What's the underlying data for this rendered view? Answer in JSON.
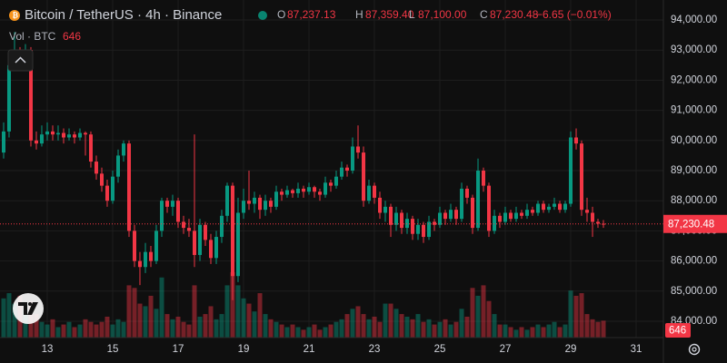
{
  "chart_data": {
    "type": "candlestick",
    "title": "Bitcoin / TetherUS · 4h · Binance",
    "ohlc_keys": [
      "O",
      "H",
      "L",
      "C"
    ],
    "last_labels": [
      "87,237.13",
      "87,359.40",
      "87,100.00",
      "87,230.48"
    ],
    "change": "−6.65 (−0.01%)",
    "volume_title": "Vol · BTC",
    "up_color": "#089981",
    "down_color": "#f23645",
    "x": [
      11.667,
      11.833,
      12,
      12.167,
      12.333,
      12.5,
      12.667,
      12.833,
      13,
      13.167,
      13.333,
      13.5,
      13.667,
      13.833,
      14,
      14.167,
      14.333,
      14.5,
      14.667,
      14.833,
      15,
      15.167,
      15.333,
      15.5,
      15.667,
      15.833,
      16,
      16.167,
      16.333,
      16.5,
      16.667,
      16.833,
      17,
      17.167,
      17.333,
      17.5,
      17.667,
      17.833,
      18,
      18.167,
      18.333,
      18.5,
      18.667,
      18.833,
      19,
      19.167,
      19.333,
      19.5,
      19.667,
      19.833,
      20,
      20.167,
      20.333,
      20.5,
      20.667,
      20.833,
      21,
      21.167,
      21.333,
      21.5,
      21.667,
      21.833,
      22,
      22.167,
      22.333,
      22.5,
      22.667,
      22.833,
      23,
      23.167,
      23.333,
      23.5,
      23.667,
      23.833,
      24,
      24.167,
      24.333,
      24.5,
      24.667,
      24.833,
      25,
      25.167,
      25.333,
      25.5,
      25.667,
      25.833,
      26,
      26.167,
      26.333,
      26.5,
      26.667,
      26.833,
      27,
      27.167,
      27.333,
      27.5,
      27.667,
      27.833,
      28,
      28.167,
      28.333,
      28.5,
      28.667,
      28.833,
      29,
      29.167,
      29.333,
      29.5,
      29.667,
      29.833,
      30
    ],
    "ohlc": [
      [
        89600,
        90600,
        89400,
        90300
      ],
      [
        90300,
        92700,
        90100,
        92500
      ],
      [
        92500,
        93600,
        92300,
        92900
      ],
      [
        92900,
        93100,
        92400,
        92700
      ],
      [
        92700,
        93200,
        92500,
        93000
      ],
      [
        93000,
        93100,
        89800,
        90000
      ],
      [
        90000,
        90300,
        89700,
        89900
      ],
      [
        89900,
        90500,
        89800,
        90200
      ],
      [
        90200,
        90600,
        90000,
        90300
      ],
      [
        90300,
        90500,
        90000,
        90200
      ],
      [
        90200,
        90500,
        90000,
        90250
      ],
      [
        90250,
        90400,
        89900,
        90100
      ],
      [
        90100,
        90400,
        90000,
        90200
      ],
      [
        90200,
        90300,
        89900,
        90100
      ],
      [
        90100,
        90400,
        90000,
        90250
      ],
      [
        90250,
        90300,
        89500,
        90200
      ],
      [
        90200,
        90300,
        89100,
        89300
      ],
      [
        89300,
        89500,
        88700,
        88900
      ],
      [
        88900,
        89100,
        88300,
        88500
      ],
      [
        88500,
        88700,
        87800,
        88000
      ],
      [
        88000,
        89000,
        87900,
        88800
      ],
      [
        88800,
        89700,
        88600,
        89500
      ],
      [
        89500,
        90000,
        89300,
        89900
      ],
      [
        89900,
        90000,
        86800,
        87000
      ],
      [
        87000,
        87200,
        85800,
        86000
      ],
      [
        86000,
        86300,
        85200,
        85800
      ],
      [
        85800,
        86600,
        85600,
        86300
      ],
      [
        86300,
        86500,
        85800,
        86000
      ],
      [
        86000,
        87200,
        85900,
        87000
      ],
      [
        87000,
        88100,
        86800,
        88000
      ],
      [
        88000,
        88100,
        87600,
        87800
      ],
      [
        87800,
        88200,
        87500,
        88000
      ],
      [
        88000,
        88100,
        87100,
        87300
      ],
      [
        87300,
        87500,
        86900,
        87100
      ],
      [
        87100,
        87400,
        86800,
        87000
      ],
      [
        87000,
        90200,
        85800,
        86200
      ],
      [
        86200,
        87400,
        86000,
        87200
      ],
      [
        87200,
        87300,
        86500,
        86700
      ],
      [
        86700,
        86900,
        85900,
        86100
      ],
      [
        86100,
        87000,
        85900,
        86800
      ],
      [
        86800,
        87700,
        86600,
        87500
      ],
      [
        87500,
        88600,
        87300,
        88500
      ],
      [
        88500,
        88600,
        84700,
        85500
      ],
      [
        85500,
        88100,
        85300,
        87600
      ],
      [
        87600,
        88400,
        87400,
        88000
      ],
      [
        88000,
        89000,
        87700,
        87900
      ],
      [
        87900,
        88300,
        87600,
        88100
      ],
      [
        88100,
        88200,
        87400,
        87700
      ],
      [
        87700,
        88200,
        87500,
        88000
      ],
      [
        88000,
        88100,
        87600,
        87800
      ],
      [
        87800,
        88500,
        87700,
        88300
      ],
      [
        88300,
        88400,
        88000,
        88200
      ],
      [
        88200,
        88500,
        88100,
        88350
      ],
      [
        88350,
        88400,
        88100,
        88250
      ],
      [
        88250,
        88600,
        88100,
        88400
      ],
      [
        88400,
        88500,
        88100,
        88300
      ],
      [
        88300,
        88600,
        88200,
        88450
      ],
      [
        88450,
        88500,
        88100,
        88300
      ],
      [
        88300,
        88400,
        88000,
        88200
      ],
      [
        88200,
        88800,
        88100,
        88600
      ],
      [
        88600,
        88700,
        88300,
        88500
      ],
      [
        88500,
        89000,
        88400,
        88800
      ],
      [
        88800,
        89300,
        88700,
        89100
      ],
      [
        89100,
        89200,
        88800,
        89000
      ],
      [
        89000,
        90100,
        88900,
        89800
      ],
      [
        89800,
        90500,
        89400,
        89600
      ],
      [
        89600,
        89800,
        87800,
        88000
      ],
      [
        88000,
        88700,
        87900,
        88500
      ],
      [
        88500,
        88600,
        87900,
        88100
      ],
      [
        88100,
        88300,
        87400,
        87600
      ],
      [
        87600,
        88000,
        87300,
        87800
      ],
      [
        87800,
        87900,
        86800,
        87200
      ],
      [
        87200,
        87800,
        87000,
        87600
      ],
      [
        87600,
        87700,
        86900,
        87100
      ],
      [
        87100,
        87600,
        86900,
        87400
      ],
      [
        87400,
        87500,
        86700,
        86900
      ],
      [
        86900,
        87400,
        86700,
        87200
      ],
      [
        87200,
        87300,
        86600,
        86800
      ],
      [
        86800,
        87500,
        86700,
        87300
      ],
      [
        87300,
        87400,
        87000,
        87200
      ],
      [
        87200,
        87800,
        87100,
        87600
      ],
      [
        87600,
        87700,
        87200,
        87400
      ],
      [
        87400,
        87900,
        87300,
        87700
      ],
      [
        87700,
        87800,
        87200,
        87400
      ],
      [
        87400,
        88600,
        87300,
        88400
      ],
      [
        88400,
        88500,
        87900,
        88100
      ],
      [
        88100,
        88200,
        86900,
        87100
      ],
      [
        87100,
        89400,
        87000,
        89000
      ],
      [
        89000,
        89100,
        88300,
        88500
      ],
      [
        88500,
        88600,
        86800,
        87000
      ],
      [
        87000,
        87700,
        86900,
        87500
      ],
      [
        87500,
        87600,
        87100,
        87300
      ],
      [
        87300,
        87800,
        87200,
        87600
      ],
      [
        87600,
        87700,
        87300,
        87400
      ],
      [
        87400,
        87800,
        87300,
        87600
      ],
      [
        87600,
        87700,
        87400,
        87500
      ],
      [
        87500,
        87900,
        87400,
        87700
      ],
      [
        87700,
        87800,
        87500,
        87600
      ],
      [
        87600,
        88000,
        87500,
        87900
      ],
      [
        87900,
        88000,
        87600,
        87700
      ],
      [
        87700,
        87900,
        87600,
        87800
      ],
      [
        87800,
        88100,
        87700,
        87900
      ],
      [
        87900,
        88000,
        87600,
        87700
      ],
      [
        87700,
        88000,
        87600,
        87900
      ],
      [
        87900,
        90300,
        87800,
        90100
      ],
      [
        90100,
        90400,
        89700,
        89900
      ],
      [
        89900,
        90000,
        87500,
        87700
      ],
      [
        87700,
        88100,
        87300,
        87600
      ],
      [
        87600,
        87800,
        86800,
        87300
      ],
      [
        87300,
        87400,
        87100,
        87240
      ],
      [
        87237.13,
        87359.4,
        87100,
        87230.48
      ]
    ],
    "volumes": [
      1500,
      1700,
      1300,
      1600,
      1200,
      1400,
      900,
      600,
      500,
      700,
      400,
      500,
      600,
      400,
      500,
      700,
      600,
      500,
      600,
      800,
      500,
      700,
      600,
      2000,
      1900,
      1300,
      1200,
      1600,
      1100,
      2300,
      900,
      700,
      800,
      600,
      500,
      2000,
      800,
      900,
      1200,
      700,
      900,
      2000,
      2500,
      2000,
      1500,
      1300,
      1000,
      1700,
      900,
      700,
      600,
      500,
      400,
      500,
      400,
      300,
      400,
      500,
      300,
      400,
      500,
      600,
      700,
      900,
      1100,
      1200,
      900,
      700,
      800,
      600,
      1300,
      1300,
      1100,
      900,
      800,
      700,
      900,
      600,
      700,
      500,
      600,
      700,
      500,
      600,
      1100,
      800,
      1900,
      1600,
      2000,
      1400,
      900,
      500,
      500,
      400,
      300,
      400,
      300,
      400,
      500,
      400,
      500,
      600,
      400,
      500,
      1800,
      1600,
      1700,
      900,
      700,
      600,
      646
    ],
    "xlim": [
      11.556,
      31.833
    ],
    "xticks": [
      13,
      15,
      17,
      19,
      21,
      23,
      25,
      27,
      29,
      31
    ],
    "ylim": [
      83458,
      94663
    ],
    "yticks": [
      {
        "value": 84000,
        "label": "84,000.00"
      },
      {
        "value": 85000,
        "label": "85,000.00"
      },
      {
        "value": 86000,
        "label": "86,000.00"
      },
      {
        "value": 87000,
        "label": "87,000.00"
      },
      {
        "value": 88000,
        "label": "88,000.00"
      },
      {
        "value": 89000,
        "label": "89,000.00"
      },
      {
        "value": 90000,
        "label": "90,000.00"
      },
      {
        "value": 91000,
        "label": "91,000.00"
      },
      {
        "value": 92000,
        "label": "92,000.00"
      },
      {
        "value": 93000,
        "label": "93,000.00"
      },
      {
        "value": 94000,
        "label": "94,000.00"
      }
    ],
    "grid": true,
    "last_price_line": true
  }
}
